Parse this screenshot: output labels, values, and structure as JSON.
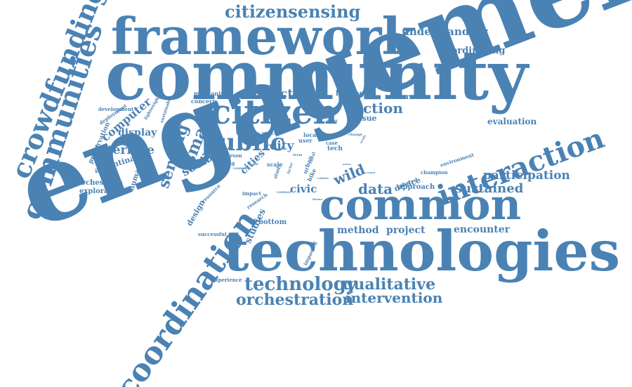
{
  "color": "#4a82b4",
  "words": [
    "engagement",
    "technologies",
    "community",
    "framework",
    "common",
    "citizen",
    "interaction",
    "coordination",
    "crowdfunding",
    "communities",
    "citizensensing",
    "technology",
    "qualitative",
    "orchestration",
    "intervention",
    "sensing",
    "smart",
    "public",
    "wild",
    "data",
    "sustained",
    "participation",
    "action",
    "activism",
    "evaluation",
    "understanding",
    "coordinating",
    "interface",
    "computer",
    "display",
    "social",
    "open",
    "city",
    "cities",
    "method",
    "project",
    "encounter",
    "civic",
    "device",
    "approach",
    "orchestrate",
    "exploration",
    "argentina",
    "human",
    "preservation",
    "design",
    "studies",
    "bottom",
    "issue",
    "heritage",
    "researcher",
    "mechanism",
    "concern",
    "development",
    "deployment",
    "lightweight",
    "sustainable",
    "successful",
    "experience",
    "impacted",
    "champion",
    "environment",
    "shared",
    "impact",
    "resource",
    "research",
    "user",
    "local",
    "town",
    "space",
    "level",
    "person",
    "leaving",
    "council",
    "scale",
    "tech",
    "case",
    "study",
    "rural",
    "term",
    "urban",
    "bike",
    "factor",
    "paper",
    "present",
    "change",
    "contact",
    "theme",
    "culture",
    "reuse",
    "needs",
    "actor",
    "tool"
  ]
}
